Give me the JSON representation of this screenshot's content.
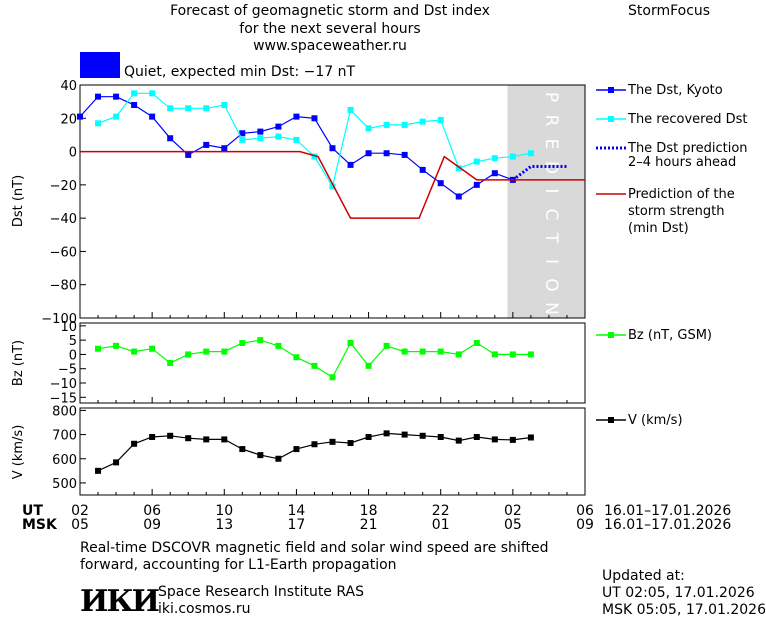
{
  "header": {
    "title_lines": [
      "Forecast of geomagnetic storm and Dst index",
      "for the next several hours",
      "www.spaceweather.ru"
    ],
    "brand": "StormFocus",
    "status_color": "#0000ff",
    "status_text": "Quiet, expected min Dst: −17 nT"
  },
  "legend": {
    "dst_kyoto": "The Dst, Kyoto",
    "recovered": "The recovered Dst",
    "prediction_lines": [
      "The Dst prediction",
      "2–4 hours ahead"
    ],
    "strength_lines": [
      "Prediction of the",
      "storm strength",
      "(min Dst)"
    ],
    "bz": "Bz (nT, GSM)",
    "v": "V (km/s)"
  },
  "prediction_label": "PREDICTION",
  "time_axis": {
    "ut_label": "UT",
    "msk_label": "MSK",
    "ut_ticks": [
      "02",
      "06",
      "10",
      "14",
      "18",
      "22",
      "02",
      "06"
    ],
    "msk_ticks": [
      "05",
      "09",
      "13",
      "17",
      "21",
      "01",
      "05",
      "09"
    ],
    "range_text": "16.01–17.01.2026"
  },
  "footer": {
    "note_lines": [
      "Real-time DSCOVR magnetic field and solar wind speed are shifted",
      "forward, accounting for L1-Earth propagation"
    ],
    "logo_text": "ИКИ",
    "institute": "Space Research Institute RAS",
    "site": "iki.cosmos.ru",
    "updated_label": "Updated at:",
    "updated_ut": "UT   02:05, 17.01.2026",
    "updated_msk": "MSK 05:05, 17.01.2026"
  },
  "chart_data": [
    {
      "type": "line",
      "ylabel": "Dst (nT)",
      "ylim": [
        -100,
        40
      ],
      "yticks": [
        40,
        20,
        0,
        -20,
        -40,
        -60,
        -80,
        -100
      ],
      "x_range": [
        0,
        28
      ],
      "prediction_start": 23.7,
      "series": [
        {
          "name": "The Dst, Kyoto",
          "color": "#0000ff",
          "x": [
            0,
            1,
            2,
            3,
            4,
            5,
            6,
            7,
            8,
            9,
            10,
            11,
            12,
            13,
            14,
            15,
            16,
            17,
            18,
            19,
            20,
            21,
            22,
            23,
            24
          ],
          "values": [
            21,
            33,
            33,
            28,
            21,
            8,
            -2,
            4,
            2,
            11,
            12,
            15,
            21,
            20,
            2,
            -8,
            -1,
            -1,
            -2,
            -11,
            -19,
            -27,
            -20,
            -13,
            -17
          ]
        },
        {
          "name": "The recovered Dst",
          "color": "#00ffff",
          "x": [
            1,
            2,
            3,
            4,
            5,
            6,
            7,
            8,
            9,
            10,
            11,
            12,
            13,
            14,
            15,
            16,
            17,
            18,
            19,
            20,
            21,
            22,
            23,
            24,
            25
          ],
          "values": [
            17,
            21,
            35,
            35,
            26,
            26,
            26,
            28,
            7,
            8,
            9,
            7,
            -3,
            -21,
            25,
            14,
            16,
            16,
            18,
            19,
            -10,
            -6,
            -4,
            -3,
            -1
          ]
        },
        {
          "name": "The Dst prediction 2–4 hours ahead",
          "color": "#0000ff",
          "dashed": true,
          "x": [
            24,
            25,
            26,
            27
          ],
          "values": [
            -17,
            -9,
            -9,
            -9
          ]
        },
        {
          "name": "Prediction of the storm strength (min Dst)",
          "color": "#cc0000",
          "step": true,
          "x": [
            0,
            12.2,
            13.2,
            15,
            18.8,
            20.2,
            22,
            28
          ],
          "values": [
            0,
            0,
            -3,
            -40,
            -40,
            -3,
            -17,
            -17
          ]
        }
      ]
    },
    {
      "type": "line",
      "ylabel": "Bz (nT)",
      "ylim": [
        -17,
        11
      ],
      "yticks": [
        10,
        5,
        0,
        -5,
        -10,
        -15
      ],
      "x_range": [
        0,
        28
      ],
      "series": [
        {
          "name": "Bz (nT, GSM)",
          "color": "#00ff00",
          "x": [
            1,
            2,
            3,
            4,
            5,
            6,
            7,
            8,
            9,
            10,
            11,
            12,
            13,
            14,
            15,
            16,
            17,
            18,
            19,
            20,
            21,
            22,
            23,
            24,
            25
          ],
          "values": [
            2,
            3,
            1,
            2,
            -3,
            0,
            1,
            1,
            4,
            5,
            3,
            -1,
            -4,
            -8,
            4,
            -4,
            3,
            1,
            1,
            1,
            0,
            4,
            0,
            0,
            0
          ]
        }
      ]
    },
    {
      "type": "line",
      "ylabel": "V (km/s)",
      "ylim": [
        450,
        810
      ],
      "yticks": [
        800,
        700,
        600,
        500
      ],
      "x_range": [
        0,
        28
      ],
      "series": [
        {
          "name": "V (km/s)",
          "color": "#000000",
          "x": [
            1,
            2,
            3,
            4,
            5,
            6,
            7,
            8,
            9,
            10,
            11,
            12,
            13,
            14,
            15,
            16,
            17,
            18,
            19,
            20,
            21,
            22,
            23,
            24,
            25
          ],
          "values": [
            550,
            585,
            662,
            690,
            695,
            685,
            680,
            680,
            640,
            615,
            600,
            640,
            660,
            670,
            665,
            690,
            705,
            700,
            695,
            690,
            675,
            690,
            680,
            678,
            688
          ]
        }
      ]
    }
  ]
}
